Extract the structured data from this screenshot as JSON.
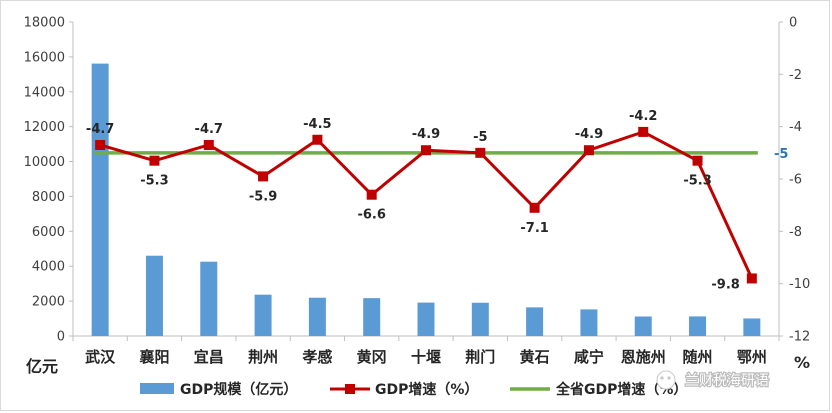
{
  "chart_data": {
    "type": "bar",
    "categories": [
      "武汉",
      "襄阳",
      "宜昌",
      "荆州",
      "孝感",
      "黄冈",
      "十堰",
      "荆门",
      "黄石",
      "咸宁",
      "恩施州",
      "随州",
      "鄂州"
    ],
    "series": [
      {
        "name": "GDP规模（亿元）",
        "type": "bar",
        "axis": "left",
        "color": "#5b9bd5",
        "values": [
          15616,
          4602,
          4261,
          2369,
          2194,
          2170,
          1915,
          1906,
          1641,
          1525,
          1118,
          1123,
          1006
        ]
      },
      {
        "name": "GDP增速（%）",
        "type": "line",
        "axis": "right",
        "color": "#c00000",
        "marker": "square",
        "values": [
          -4.7,
          -5.3,
          -4.7,
          -5.9,
          -4.5,
          -6.6,
          -4.9,
          -5.0,
          -7.1,
          -4.9,
          -4.2,
          -5.3,
          -9.8
        ],
        "labels": [
          "-4.7",
          "-5.3",
          "-4.7",
          "-5.9",
          "-4.5",
          "-6.6",
          "-4.9",
          "-5",
          "-7.1",
          "-4.9",
          "-4.2",
          "-5.3",
          "-9.8"
        ]
      },
      {
        "name": "全省GDP增速（%）",
        "type": "line",
        "axis": "right",
        "color": "#70ad47",
        "values": [
          -5,
          -5,
          -5,
          -5,
          -5,
          -5,
          -5,
          -5,
          -5,
          -5,
          -5,
          -5,
          -5
        ],
        "end_label": "-5"
      }
    ],
    "y_left": {
      "ylim": [
        0,
        18000
      ],
      "ticks": [
        "0",
        "2000",
        "4000",
        "6000",
        "8000",
        "10000",
        "12000",
        "14000",
        "16000",
        "18000"
      ],
      "unit": "亿元"
    },
    "y_right": {
      "ylim": [
        -12,
        0
      ],
      "ticks": [
        "0",
        "-2",
        "-4",
        "-6",
        "-8",
        "-10",
        "-12"
      ],
      "unit": "%"
    },
    "legend_position": "bottom",
    "grid": false
  },
  "watermark": "兰财税海研语"
}
